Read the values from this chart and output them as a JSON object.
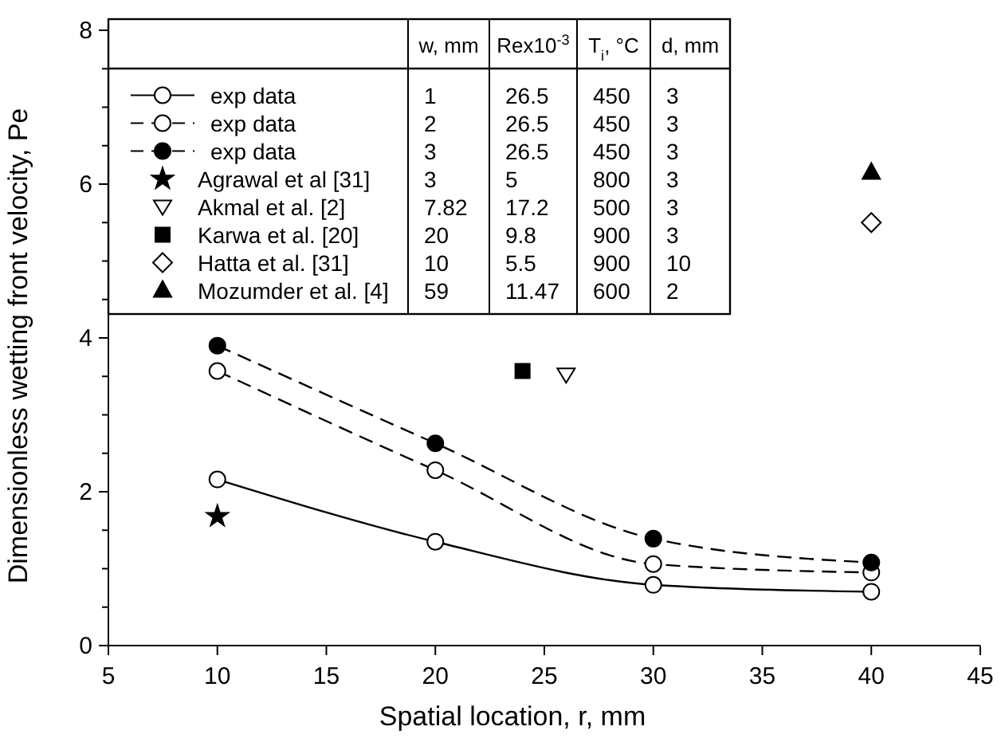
{
  "chart_data": {
    "type": "line",
    "xlabel": "Spatial location, r, mm",
    "ylabel": "Dimensionless wetting front velocity, Pe",
    "xlim": [
      5,
      45
    ],
    "xticks": [
      5,
      10,
      15,
      20,
      25,
      30,
      35,
      40,
      45
    ],
    "ylim": [
      0,
      8
    ],
    "yticks": [
      0,
      {
        "value": 0.5,
        "label": null
      },
      2,
      {
        "value": 1,
        "label": null
      },
      {
        "value": 1.5,
        "label": null
      },
      {
        "value": 2.5,
        "label": null
      },
      {
        "value": 3,
        "label": null
      },
      {
        "value": 3.5,
        "label": null
      },
      4,
      {
        "value": 4.5,
        "label": null
      },
      {
        "value": 5,
        "label": null
      },
      {
        "value": 5.5,
        "label": null
      },
      6,
      {
        "value": 6.5,
        "label": null
      },
      {
        "value": 7,
        "label": null
      },
      {
        "value": 7.5,
        "label": null
      },
      8
    ],
    "legend": "top left",
    "series": [
      {
        "type": "line",
        "name": "exp data",
        "color": "#ffffff",
        "marker": "circle",
        "line_style": "solid",
        "x": [
          10,
          20,
          30,
          40
        ],
        "values": [
          2.16,
          1.35,
          0.79,
          0.7
        ]
      },
      {
        "type": "line",
        "name": "exp data",
        "color": "#ffffff",
        "marker": "circle",
        "line_style": "dashed",
        "x": [
          10,
          20,
          30,
          40
        ],
        "values": [
          3.57,
          2.28,
          1.06,
          0.95
        ]
      },
      {
        "type": "line",
        "name": "exp data",
        "color": "#000000",
        "marker": "circle",
        "line_style": "dashed",
        "x": [
          10,
          20,
          30,
          40
        ],
        "values": [
          3.9,
          2.63,
          1.39,
          1.08
        ]
      },
      {
        "type": "scatter",
        "name": "Agrawal et al [31]",
        "color": "#000000",
        "marker": "star",
        "x": [
          10
        ],
        "values": [
          1.68
        ]
      },
      {
        "type": "scatter",
        "name": "Akmal et al. [2]",
        "color": "#ffffff",
        "marker": "triangle-down",
        "x": [
          26
        ],
        "values": [
          3.52
        ]
      },
      {
        "type": "scatter",
        "name": "Karwa et al. [20]",
        "color": "#000000",
        "marker": "square",
        "x": [
          24
        ],
        "values": [
          3.57
        ]
      },
      {
        "type": "scatter",
        "name": "Hatta et al. [31]",
        "color": "#ffffff",
        "marker": "diamond",
        "x": [
          40
        ],
        "values": [
          5.5
        ]
      },
      {
        "type": "scatter",
        "name": "Mozumder et al. [4]",
        "color": "#000000",
        "marker": "triangle",
        "x": [
          40
        ],
        "values": [
          6.15
        ]
      }
    ],
    "annotations": [
      "w, mm",
      "Rex10$^{-3}$",
      "T$_{i}$, °C",
      "d, mm",
      "1",
      "26.5",
      "450",
      "3",
      "2",
      "26.5",
      "450",
      "3",
      "3",
      "26.5",
      "450",
      "3",
      "3",
      "5",
      "800",
      "3",
      "7.82",
      "17.2",
      "500",
      "3",
      "20",
      "9.8",
      "900",
      "3",
      "10",
      "5.5",
      "900",
      "10",
      "59",
      "11.47",
      "600",
      "2"
    ]
  }
}
